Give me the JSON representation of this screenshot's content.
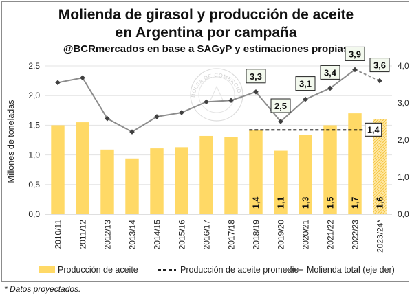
{
  "chart_data": {
    "type": "bar",
    "title_lines": [
      "Molienda de girasol y producción de aceite",
      "en Argentina por campaña"
    ],
    "subtitle": "@BCRmercados en base a SAGyP y estimaciones propias",
    "ylabel": "Millones de toneladas",
    "footnote": "* Datos proyectados.",
    "watermark": "BOLSA DE COMERCIO DE ROSARIO",
    "categories": [
      "2010/11",
      "2011/12",
      "2012/13",
      "2013/14",
      "2014/15",
      "2015/16",
      "2016/17",
      "2017/18",
      "2018/19",
      "2019/20",
      "2020/21",
      "2021/22",
      "2022/23",
      "2023/24*"
    ],
    "y_left": {
      "min": 0,
      "max": 2.5,
      "step": 0.5,
      "tick_labels": [
        "0,0",
        "0,5",
        "1,0",
        "1,5",
        "2,0",
        "2,5"
      ]
    },
    "y_right": {
      "min": 0,
      "max": 4,
      "step": 1,
      "tick_labels": [
        "0,0",
        "1,0",
        "2,0",
        "3,0",
        "4,0"
      ]
    },
    "series": [
      {
        "name": "Producción de aceite",
        "kind": "bar",
        "axis": "left",
        "color": "#FFD966",
        "values": [
          1.5,
          1.55,
          1.09,
          0.94,
          1.11,
          1.13,
          1.32,
          1.3,
          1.42,
          1.07,
          1.34,
          1.5,
          1.7,
          1.6
        ],
        "value_labels": [
          "",
          "",
          "",
          "",
          "",
          "",
          "",
          "",
          "1,4",
          "1,1",
          "1,3",
          "1,5",
          "1,7",
          "1,6"
        ],
        "projected_last": true
      },
      {
        "name": "Molienda total (eje der)",
        "kind": "line",
        "axis": "right",
        "color": "#8C8C8C",
        "values": [
          3.55,
          3.68,
          2.58,
          2.22,
          2.63,
          2.74,
          3.03,
          3.07,
          3.3,
          2.5,
          3.1,
          3.4,
          3.9,
          3.6
        ],
        "value_labels": [
          "",
          "",
          "",
          "",
          "",
          "",
          "",
          "",
          "3,3",
          "2,5",
          "3,1",
          "3,4",
          "3,9",
          "3,6"
        ]
      },
      {
        "name": "Producción de aceite promedio",
        "kind": "average",
        "axis": "left",
        "color": "#000000",
        "value": 1.42,
        "label": "1,4",
        "from_category": 8,
        "to_category": 12
      }
    ],
    "legend_position": "bottom"
  }
}
